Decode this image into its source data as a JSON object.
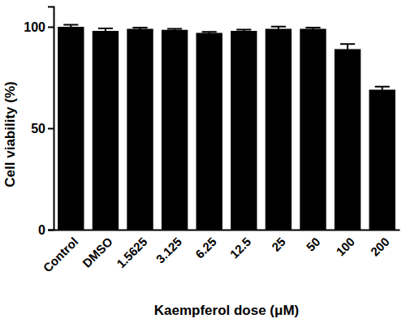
{
  "chart_data": {
    "type": "bar",
    "x_label": "Kaempferol dose (μM)",
    "y_label": "Cell viability (%)",
    "categories": [
      "Control",
      "DMSO",
      "1.5625",
      "3.125",
      "6.25",
      "12.5",
      "25",
      "50",
      "100",
      "200"
    ],
    "values": [
      100,
      98,
      99,
      98.5,
      97,
      98,
      99,
      99,
      89,
      69
    ],
    "errors": [
      1,
      1.2,
      0.6,
      0.5,
      0.5,
      0.6,
      1.1,
      0.6,
      2.5,
      1.5
    ],
    "color": "#000000",
    "ylim": [
      0,
      110
    ],
    "yticks": [
      0,
      50,
      100
    ],
    "grid": false
  }
}
